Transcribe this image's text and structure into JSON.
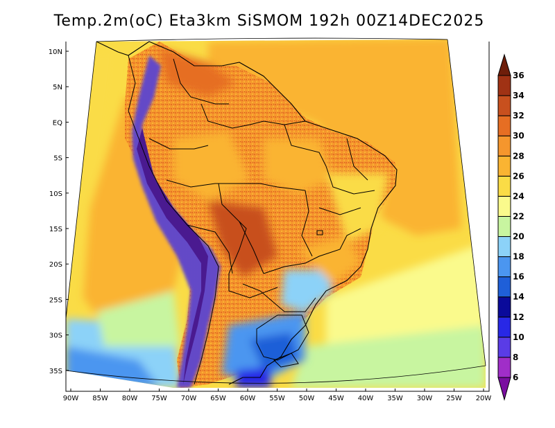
{
  "title": "Temp.2m(oC) Eta3km SiSMOM 192h 00Z14DEC2025",
  "map": {
    "variable": "2 m temperature",
    "units": "oC",
    "lon_range": [
      -90,
      -20
    ],
    "lat_range": [
      -38,
      11
    ],
    "lat_ticks": [
      "10N",
      "5N",
      "EQ",
      "5S",
      "10S",
      "15S",
      "20S",
      "25S",
      "30S",
      "35S"
    ],
    "lon_ticks": [
      "90W",
      "85W",
      "80W",
      "75W",
      "70W",
      "65W",
      "60W",
      "55W",
      "50W",
      "45W",
      "40W",
      "35W",
      "30W",
      "25W",
      "20W"
    ]
  },
  "colorbar": {
    "labels": [
      "6",
      "8",
      "10",
      "12",
      "14",
      "16",
      "18",
      "20",
      "22",
      "24",
      "26",
      "28",
      "30",
      "32",
      "34",
      "36"
    ],
    "colors": [
      "#7a0ea0",
      "#a02ec8",
      "#5a3ce6",
      "#2828e6",
      "#0a0a9a",
      "#1f5fd8",
      "#4b96f0",
      "#8cd2f8",
      "#c8f5a0",
      "#fafa8c",
      "#fadc46",
      "#fab432",
      "#f5962d",
      "#e66e23",
      "#c8501e",
      "#a03214",
      "#6e1e0a"
    ]
  }
}
